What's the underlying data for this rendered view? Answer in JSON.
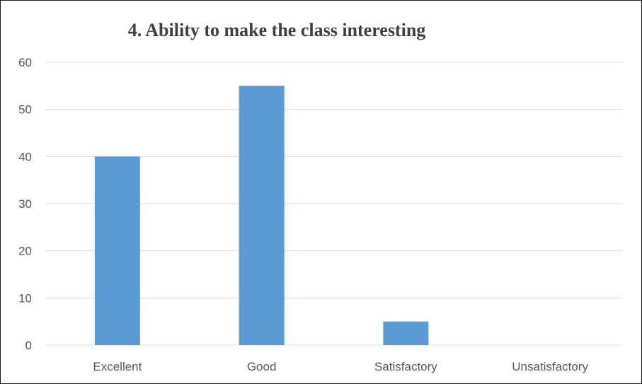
{
  "chart_data": {
    "type": "bar",
    "title": "4. Ability to make the class interesting",
    "categories": [
      "Excellent",
      "Good",
      "Satisfactory",
      "Unsatisfactory"
    ],
    "values": [
      40,
      55,
      5,
      0
    ],
    "ylim": [
      0,
      60
    ],
    "yticks": [
      0,
      10,
      20,
      30,
      40,
      50,
      60
    ],
    "xlabel": "",
    "ylabel": "",
    "grid": true,
    "legend": "none",
    "colors": {
      "bar": "#5b9bd5",
      "grid": "#d9d9d9",
      "axis_text": "#595959",
      "title": "#404040"
    }
  }
}
